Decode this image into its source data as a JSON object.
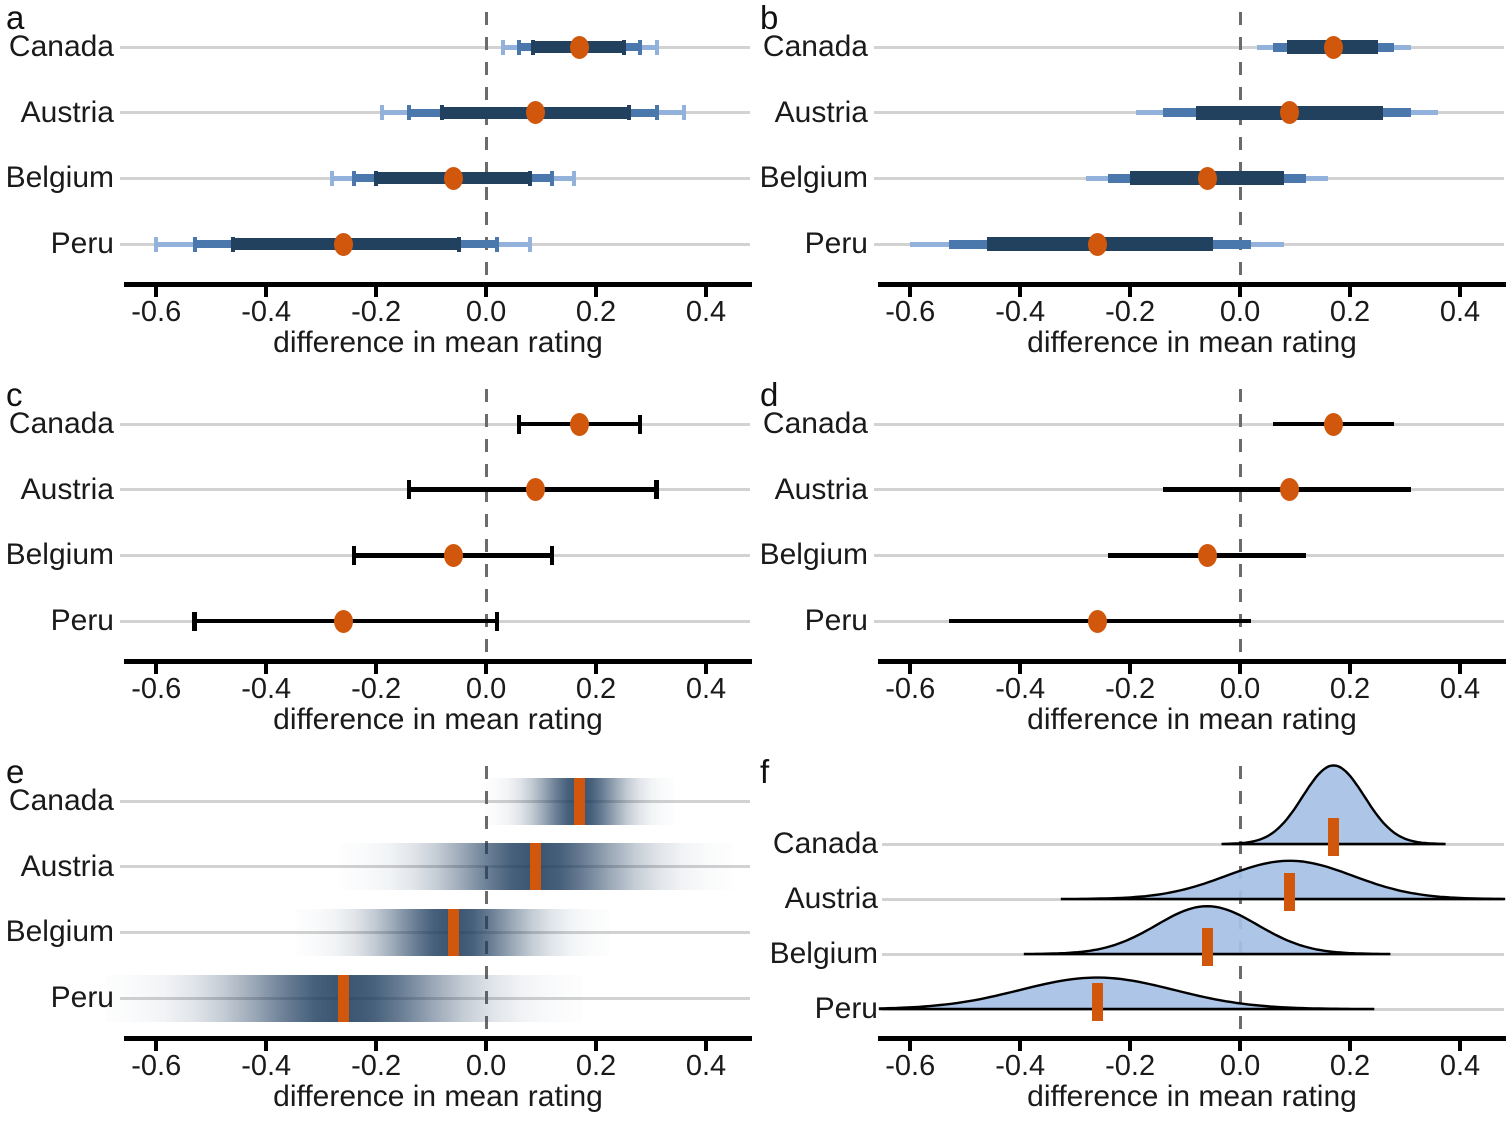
{
  "figure": {
    "xlabel": "difference in mean rating",
    "x_tick_labels": [
      "-0.6",
      "-0.4",
      "-0.2",
      "0.0",
      "0.2",
      "0.4"
    ],
    "colors": {
      "point_orange": "#D0570B",
      "ci80_dark_blue": "#21415F",
      "ci95_mid_blue": "#4A77AC",
      "ci99_light_blue": "#92B2DC",
      "black_bar": "#000000",
      "gridline_gray": "#d2d2d2",
      "zero_line_gray": "#6b6b6b",
      "density_fill_blue": "#A7C1E5",
      "strip_navy": "#1B3A5C"
    }
  },
  "chart_data": {
    "type": "interval_multipanel",
    "title": "",
    "xlabel": "difference in mean rating",
    "x_ticks": [
      -0.6,
      -0.4,
      -0.2,
      0.0,
      0.2,
      0.4
    ],
    "x_range": [
      -0.655,
      0.48
    ],
    "categories": [
      "Canada",
      "Austria",
      "Belgium",
      "Peru"
    ],
    "zero_reference_line": 0.0,
    "panels": [
      {
        "letter": "a",
        "style": "graded_error_bars_with_caps",
        "intervals_shown": [
          "ci80",
          "ci95",
          "ci99"
        ]
      },
      {
        "letter": "b",
        "style": "graded_error_bars_no_caps",
        "intervals_shown": [
          "ci80",
          "ci95",
          "ci99"
        ]
      },
      {
        "letter": "c",
        "style": "single_error_bar_with_caps",
        "intervals_shown": [
          "ci95"
        ]
      },
      {
        "letter": "d",
        "style": "single_error_bar_no_caps",
        "intervals_shown": [
          "ci95"
        ]
      },
      {
        "letter": "e",
        "style": "confidence_strips",
        "intervals_shown": [
          "gradient"
        ]
      },
      {
        "letter": "f",
        "style": "confidence_distributions",
        "intervals_shown": [
          "density"
        ]
      }
    ],
    "rows": [
      {
        "country": "Canada",
        "estimate": 0.17,
        "se": 0.056,
        "ci80": [
          0.085,
          0.25
        ],
        "ci95": [
          0.06,
          0.28
        ],
        "ci99": [
          0.03,
          0.31
        ]
      },
      {
        "country": "Austria",
        "estimate": 0.09,
        "se": 0.115,
        "ci80": [
          -0.08,
          0.26
        ],
        "ci95": [
          -0.14,
          0.31
        ],
        "ci99": [
          -0.19,
          0.36
        ]
      },
      {
        "country": "Belgium",
        "estimate": -0.06,
        "se": 0.092,
        "ci80": [
          -0.2,
          0.08
        ],
        "ci95": [
          -0.24,
          0.12
        ],
        "ci99": [
          -0.28,
          0.16
        ]
      },
      {
        "country": "Peru",
        "estimate": -0.26,
        "se": 0.14,
        "ci80": [
          -0.46,
          -0.05
        ],
        "ci95": [
          -0.53,
          0.02
        ],
        "ci99": [
          -0.6,
          0.08
        ]
      }
    ]
  }
}
